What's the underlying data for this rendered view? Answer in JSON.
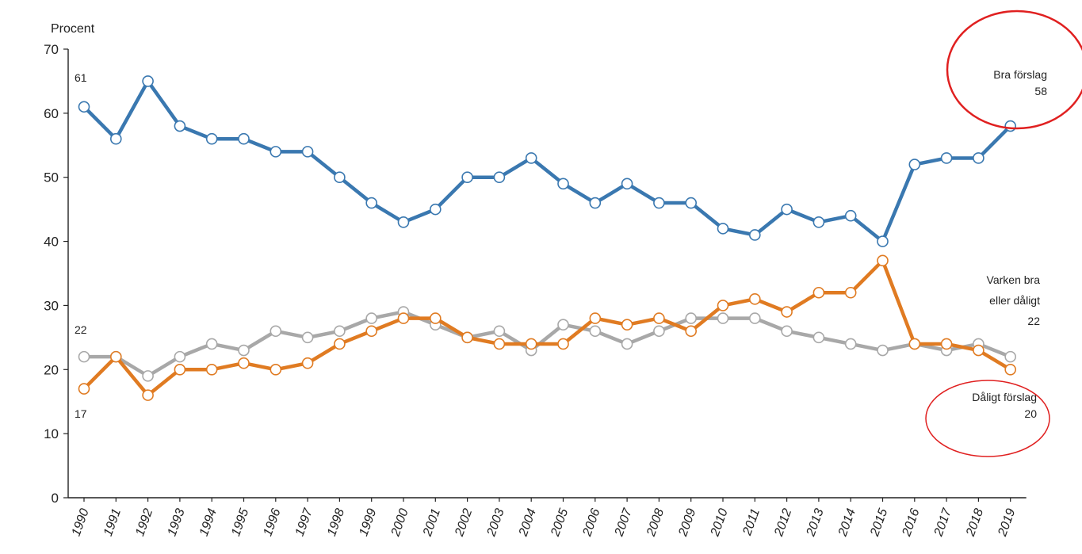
{
  "chart_data": {
    "type": "line",
    "ylabel": "Procent",
    "ylim": [
      0,
      70
    ],
    "yticks": [
      0,
      10,
      20,
      30,
      40,
      50,
      60,
      70
    ],
    "categories": [
      "1990",
      "1991",
      "1992",
      "1993",
      "1994",
      "1995",
      "1996",
      "1997",
      "1998",
      "1999",
      "2000",
      "2001",
      "2002",
      "2003",
      "2004",
      "2005",
      "2006",
      "2007",
      "2008",
      "2009",
      "2010",
      "2011",
      "2012",
      "2013",
      "2014",
      "2015",
      "2016",
      "2017",
      "2018",
      "2019"
    ],
    "grid": false,
    "series": [
      {
        "name": "Bra förslag",
        "color": "#3a78b0",
        "values": [
          61,
          56,
          65,
          58,
          56,
          56,
          54,
          54,
          50,
          46,
          43,
          45,
          50,
          50,
          53,
          49,
          46,
          49,
          46,
          46,
          42,
          41,
          45,
          43,
          44,
          40,
          52,
          53,
          53,
          58
        ]
      },
      {
        "name": "Varken bra eller dåligt",
        "color": "#a8a8a8",
        "values": [
          22,
          22,
          19,
          22,
          24,
          23,
          26,
          25,
          26,
          28,
          29,
          27,
          25,
          26,
          23,
          27,
          26,
          24,
          26,
          28,
          28,
          28,
          26,
          25,
          24,
          23,
          24,
          23,
          24,
          22
        ]
      },
      {
        "name": "Dåligt förslag",
        "color": "#e07b22",
        "values": [
          17,
          22,
          16,
          20,
          20,
          21,
          20,
          21,
          24,
          26,
          28,
          28,
          25,
          24,
          24,
          24,
          28,
          27,
          28,
          26,
          30,
          31,
          29,
          32,
          32,
          37,
          24,
          24,
          23,
          20
        ]
      }
    ],
    "annotations": {
      "bra_start": "61",
      "varken_start": "22",
      "daligt_start": "17",
      "bra_label": "Bra förslag",
      "bra_end": "58",
      "varken_label_1": "Varken bra",
      "varken_label_2": "eller dåligt",
      "varken_end": "22",
      "daligt_label": "Dåligt förslag",
      "daligt_end": "20"
    },
    "highlight_color": "#e02020"
  }
}
